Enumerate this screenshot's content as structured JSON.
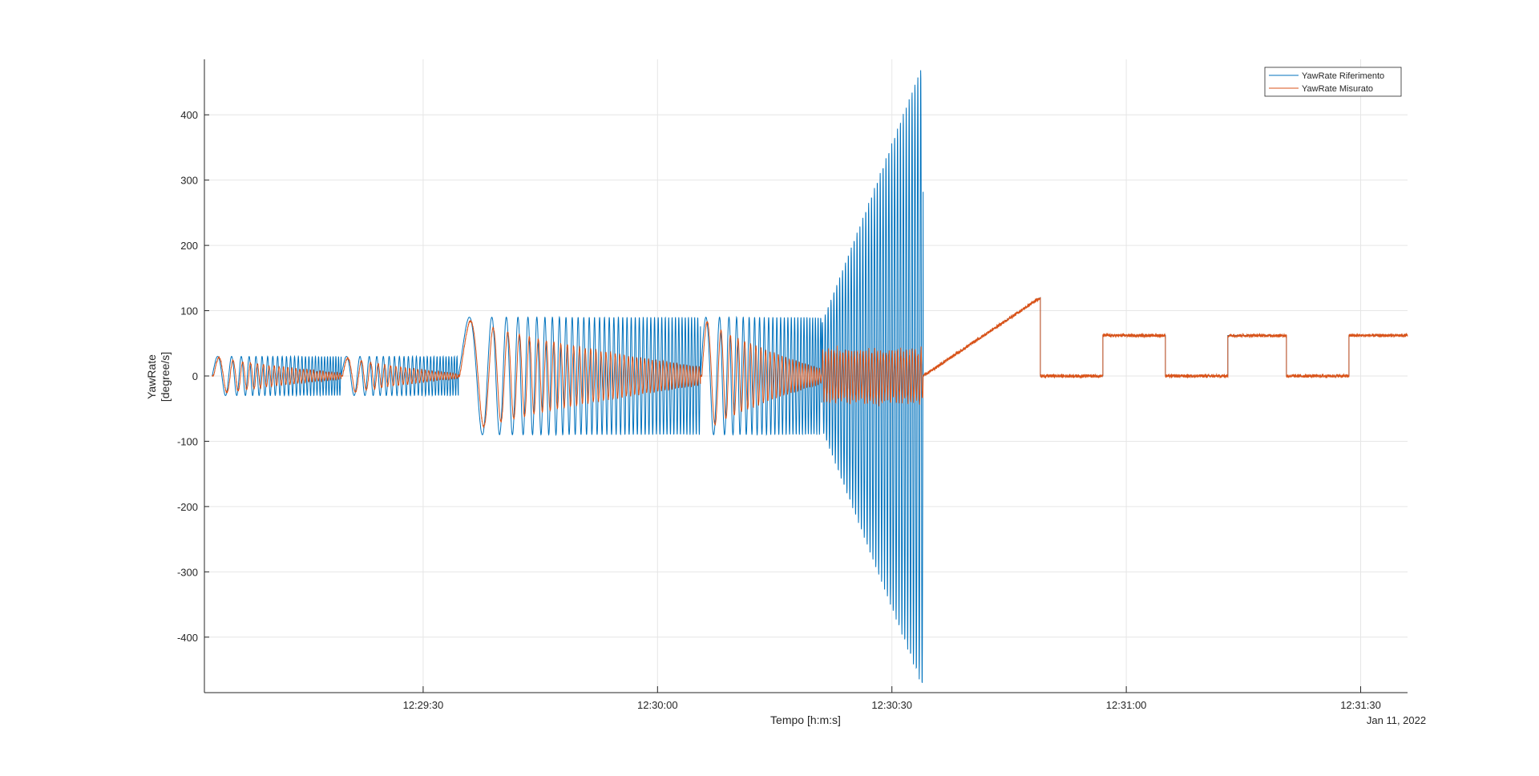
{
  "chart_data": {
    "type": "line",
    "title": "",
    "xlabel": "Tempo [h:m:s]",
    "ylabel": [
      "YawRate",
      "[degree/s]"
    ],
    "date_label": "Jan 11, 2022",
    "x_unit": "time of day (h:m:s)",
    "xlim": [
      "12:29:02",
      "12:31:36"
    ],
    "ylim": [
      -485,
      485
    ],
    "grid": true,
    "legend_position": "top-right",
    "x_ticks": [
      "12:29:30",
      "12:30:00",
      "12:30:30",
      "12:31:00",
      "12:31:30"
    ],
    "y_ticks": [
      400,
      300,
      200,
      100,
      0,
      -100,
      -200,
      -300,
      -400
    ],
    "segments": [
      {
        "kind": "chirp",
        "t_start": "12:29:03",
        "t_end": "12:29:19.5",
        "amplitude": 30,
        "freq_start_hz": 0.3,
        "freq_end_hz": 3.0,
        "measured_decay": 0.85
      },
      {
        "kind": "chirp",
        "t_start": "12:29:19.5",
        "t_end": "12:29:34.5",
        "amplitude": 30,
        "freq_start_hz": 0.3,
        "freq_end_hz": 3.0,
        "measured_decay": 0.9
      },
      {
        "kind": "chirp",
        "t_start": "12:29:34.5",
        "t_end": "12:30:05.5",
        "amplitude": 90,
        "freq_start_hz": 0.12,
        "freq_end_hz": 2.6,
        "measured_decay": 0.85
      },
      {
        "kind": "chirp",
        "t_start": "12:30:05.5",
        "t_end": "12:30:21",
        "amplitude": 90,
        "freq_start_hz": 0.3,
        "freq_end_hz": 3.0,
        "measured_decay": 0.88
      },
      {
        "kind": "growing_sine",
        "t_start": "12:30:21",
        "t_end": "12:30:34",
        "amplitude_start": 80,
        "amplitude_end": 480,
        "frequency_hz": 2.7,
        "measured_amplitude": 45
      },
      {
        "kind": "ramp",
        "t_start": "12:30:34",
        "t_end": "12:30:49",
        "value_start": 0,
        "value_end": 120
      },
      {
        "kind": "steps",
        "t_start": "12:30:49",
        "t_end": "12:31:36",
        "levels": [
          {
            "t_start": "12:30:49",
            "t_end": "12:30:57",
            "value": 0
          },
          {
            "t_start": "12:30:57",
            "t_end": "12:31:05",
            "value": 62
          },
          {
            "t_start": "12:31:05",
            "t_end": "12:31:13",
            "value": 0
          },
          {
            "t_start": "12:31:13",
            "t_end": "12:31:20.5",
            "value": 62
          },
          {
            "t_start": "12:31:20.5",
            "t_end": "12:31:28.5",
            "value": 0
          },
          {
            "t_start": "12:31:28.5",
            "t_end": "12:31:36",
            "value": 62
          }
        ]
      }
    ],
    "series": [
      {
        "name": "YawRate Riferimento",
        "color": "#0072BD"
      },
      {
        "name": "YawRate Misurato",
        "color": "#D95319"
      }
    ]
  }
}
